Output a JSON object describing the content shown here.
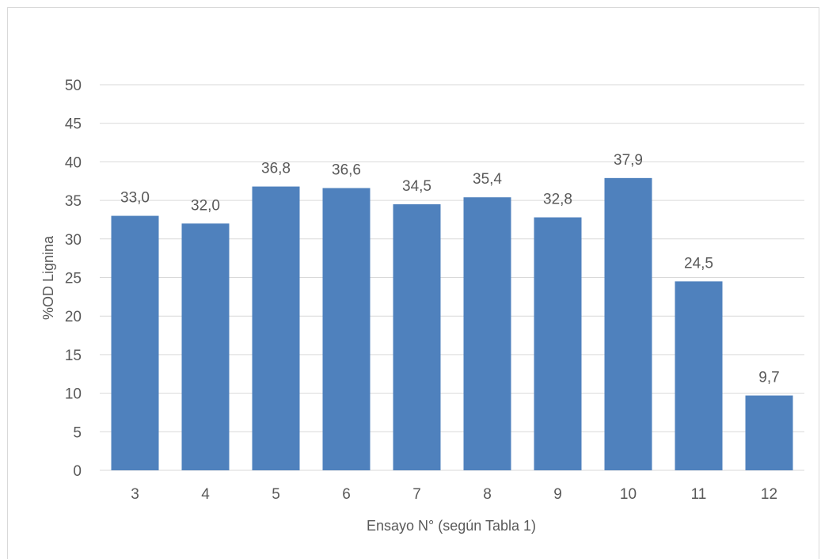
{
  "chart_data": {
    "type": "bar",
    "categories": [
      "3",
      "4",
      "5",
      "6",
      "7",
      "8",
      "9",
      "10",
      "11",
      "12"
    ],
    "values": [
      33.0,
      32.0,
      36.8,
      36.6,
      34.5,
      35.4,
      32.8,
      37.9,
      24.5,
      9.7
    ],
    "data_labels": [
      "33,0",
      "32,0",
      "36,8",
      "36,6",
      "34,5",
      "35,4",
      "32,8",
      "37,9",
      "24,5",
      "9,7"
    ],
    "xlabel": "Ensayo N° (según Tabla 1)",
    "ylabel": "%OD Lignina",
    "ylim": [
      0,
      50
    ],
    "yticks": [
      0,
      5,
      10,
      15,
      20,
      25,
      30,
      35,
      40,
      45,
      50
    ],
    "grid": true,
    "bar_color": "#4f81bd",
    "grid_color": "#d9d9d9"
  }
}
